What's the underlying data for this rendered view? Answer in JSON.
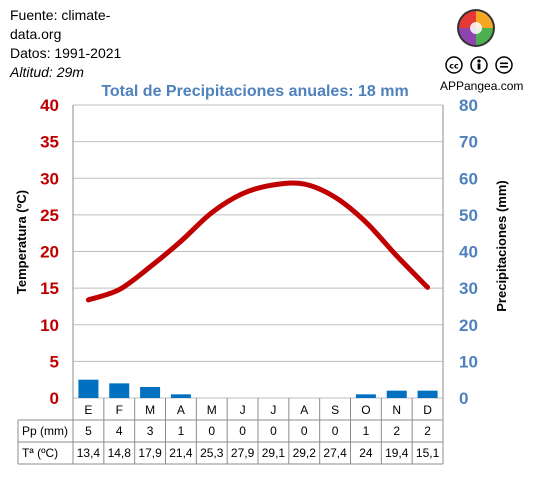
{
  "source": {
    "line1": "Fuente: climate-",
    "line2": "data.org",
    "line3": "Datos: 1991-2021",
    "line4": "Altitud: 29m"
  },
  "brand": "APPangea.com",
  "chart_data": {
    "type": "bar+line",
    "title": "Total de Precipitaciones anuales: 18 mm",
    "ylabel_left": "Temperatura (ºC)",
    "ylabel_right": "Precipitaciones (mm)",
    "categories": [
      "E",
      "F",
      "M",
      "A",
      "M",
      "J",
      "J",
      "A",
      "S",
      "O",
      "N",
      "D"
    ],
    "left_ticks": [
      "0",
      "5",
      "10",
      "15",
      "20",
      "25",
      "30",
      "35",
      "40"
    ],
    "right_ticks": [
      "0",
      "10",
      "20",
      "30",
      "40",
      "50",
      "60",
      "70",
      "80"
    ],
    "ylim_left": [
      0,
      40
    ],
    "ylim_right": [
      0,
      80
    ],
    "series": [
      {
        "name": "Pp (mm)",
        "axis": "right",
        "type": "bar",
        "values": [
          5,
          4,
          3,
          1,
          0,
          0,
          0,
          0,
          0,
          1,
          2,
          2
        ],
        "labels": [
          "5",
          "4",
          "3",
          "1",
          "0",
          "0",
          "0",
          "0",
          "0",
          "1",
          "2",
          "2"
        ]
      },
      {
        "name": "Tª (ºC)",
        "axis": "left",
        "type": "line",
        "values": [
          13.4,
          14.8,
          17.9,
          21.4,
          25.3,
          27.9,
          29.1,
          29.2,
          27.4,
          24,
          19.4,
          15.1
        ],
        "labels": [
          "13,4",
          "14,8",
          "17,9",
          "21,4",
          "25,3",
          "27,9",
          "29,1",
          "29,2",
          "27,4",
          "24",
          "19,4",
          "15,1"
        ]
      }
    ],
    "colors": {
      "temperature": "#c00000",
      "precipitation": "#0070c0",
      "right_axis": "#4f81bd",
      "title": "#4f81bd",
      "grid": "#bfbfbf"
    },
    "grid": true
  }
}
